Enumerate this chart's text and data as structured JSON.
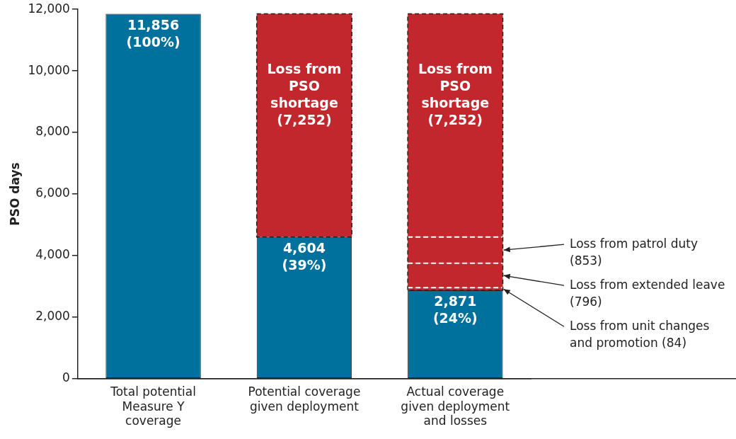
{
  "chart_data": {
    "type": "bar",
    "stacked": true,
    "ylabel": "PSO days",
    "categories": [
      "Total potential Measure Y coverage",
      "Potential coverage given deployment",
      "Actual coverage given deployment and losses"
    ],
    "series": [
      {
        "color": "#00709c",
        "values": [
          11856,
          4604,
          2871
        ],
        "value_labels": [
          "11,856 (100%)",
          "4,604 (39%)",
          "2,871 (24%)"
        ]
      },
      {
        "name": "Loss from unit changes and promotion (84)",
        "color": "#c1272d",
        "line_style": "dashed",
        "values": [
          null,
          null,
          84
        ]
      },
      {
        "name": "Loss from extended leave (796)",
        "color": "#c1272d",
        "line_style": "dashed",
        "values": [
          null,
          null,
          796
        ]
      },
      {
        "name": "Loss from patrol duty (853)",
        "color": "#c1272d",
        "line_style": "dashed",
        "values": [
          null,
          null,
          853
        ]
      },
      {
        "color": "#c1272d",
        "line_style": "dashed",
        "values": [
          null,
          7252,
          7252
        ],
        "value_labels": [
          null,
          "Loss from PSO shortage (7,252)",
          "Loss from PSO shortage (7,252)"
        ]
      }
    ],
    "ylim": [
      0,
      12000
    ],
    "yticks": [
      0,
      {
        "value": 2000,
        "label": "2,000"
      },
      {
        "value": 4000,
        "label": "4,000"
      },
      {
        "value": 6000,
        "label": "6,000"
      },
      {
        "value": 8000,
        "label": "8,000"
      },
      {
        "value": 10000,
        "label": "10,000"
      },
      {
        "value": 12000,
        "label": "12,000"
      }
    ],
    "grid": false,
    "legend": false
  }
}
